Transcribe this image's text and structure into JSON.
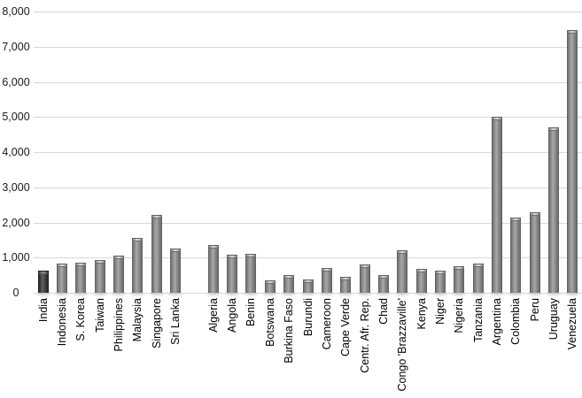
{
  "chart_data": {
    "type": "bar",
    "title": "",
    "y_axis": {
      "min": 0,
      "max": 8000,
      "tick_interval": 1000,
      "tick_labels": [
        "0",
        "1,000",
        "2,000",
        "3,000",
        "4,000",
        "5,000",
        "6,000",
        "7,000",
        "8,000"
      ],
      "grid": true
    },
    "categories": [
      "India",
      "Indonesia",
      "S. Korea",
      "Taiwan",
      "Philippines",
      "Malaysia",
      "Singapore",
      "Sri Lanka",
      "Algeria",
      "Angola",
      "Benin",
      "Botswana",
      "Burkina Faso",
      "Burundi",
      "Cameroon",
      "Cape Verde",
      "Centr. Afr. Rep.",
      "Chad",
      "Congo 'Brazzaville'",
      "Kenya",
      "Niger",
      "Nigeria",
      "Tanzania",
      "Argentina",
      "Colombia",
      "Peru",
      "Uruguay",
      "Venezuela"
    ],
    "values": [
      630,
      820,
      850,
      930,
      1060,
      1560,
      2210,
      1250,
      1370,
      1080,
      1110,
      360,
      500,
      380,
      700,
      460,
      800,
      510,
      1210,
      670,
      620,
      750,
      820,
      5000,
      2150,
      2300,
      4700,
      7460
    ],
    "group_gap_after": "Sri Lanka",
    "highlight_category": "India",
    "legend": "none",
    "x_label_rotation_deg": -90,
    "colors": {
      "bar": "#8f8f8f",
      "bar_highlight": "#3d3d3d",
      "gridline": "#d8d8d8",
      "axis_text": "#000000",
      "background": "#ffffff"
    }
  }
}
